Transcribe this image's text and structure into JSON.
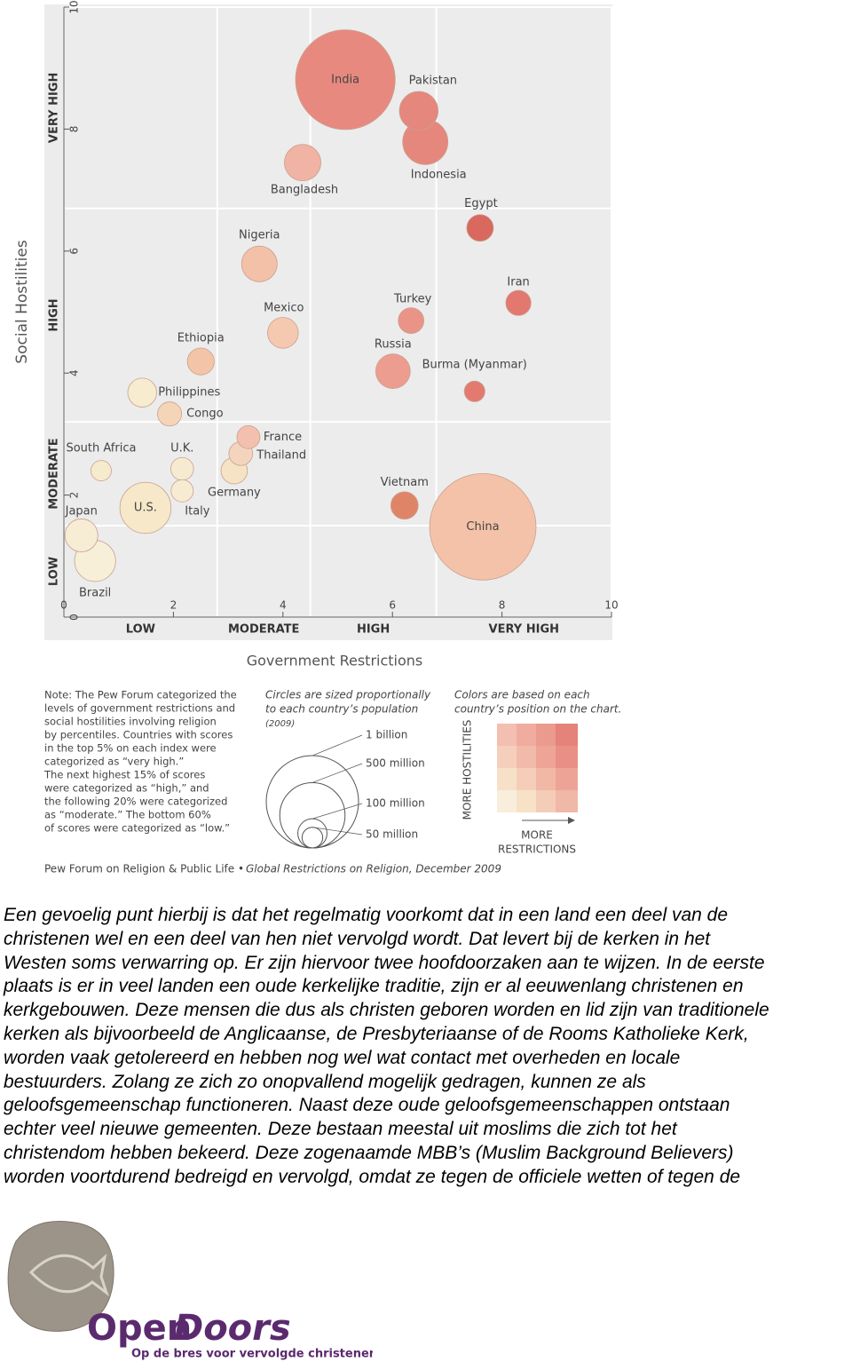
{
  "chart_data": {
    "type": "bubble",
    "x_label": "Government Restrictions",
    "y_label": "Social Hostilities",
    "xlim": [
      0,
      10
    ],
    "ylim": [
      0,
      10
    ],
    "xticks": [
      0,
      2,
      4,
      6,
      8,
      10
    ],
    "yticks": [
      0,
      2,
      4,
      6,
      8,
      10
    ],
    "x_bands": [
      "LOW",
      "MODERATE",
      "HIGH",
      "VERY HIGH"
    ],
    "x_band_edges": [
      0,
      2.8,
      4.5,
      6.8,
      10
    ],
    "y_bands": [
      "LOW",
      "MODERATE",
      "HIGH",
      "VERY HIGH"
    ],
    "y_band_edges": [
      0,
      1.5,
      3.2,
      6.7,
      10
    ],
    "names": [
      "India",
      "Pakistan",
      "Indonesia",
      "Bangladesh",
      "Egypt",
      "Nigeria",
      "Iran",
      "Turkey",
      "Mexico",
      "Russia",
      "Ethiopia",
      "Burma (Myanmar)",
      "Philippines",
      "Congo",
      "France",
      "Thailand",
      "U.K.",
      "South Africa",
      "Germany",
      "Italy",
      "U.S.",
      "Vietnam",
      "China",
      "Japan",
      "Brazil"
    ],
    "x": [
      5.14,
      6.48,
      6.6,
      4.36,
      7.6,
      3.57,
      8.3,
      6.34,
      4.0,
      6.01,
      2.5,
      7.5,
      1.43,
      1.93,
      3.37,
      3.23,
      2.16,
      0.68,
      3.11,
      2.16,
      1.49,
      6.22,
      7.65,
      0.32,
      0.57
    ],
    "y": [
      8.81,
      8.3,
      7.79,
      7.45,
      6.38,
      5.79,
      5.15,
      4.86,
      4.66,
      4.03,
      4.19,
      3.7,
      3.68,
      3.33,
      2.95,
      2.68,
      2.43,
      2.4,
      2.4,
      2.07,
      1.79,
      1.83,
      1.48,
      1.34,
      0.92
    ],
    "sizes": [
      1166,
      176,
      240,
      156,
      83,
      149,
      74,
      77,
      111,
      140,
      85,
      50,
      98,
      68,
      62,
      66,
      61,
      49,
      82,
      58,
      307,
      88,
      1331,
      127,
      198
    ],
    "colors": [
      "#e8897f",
      "#e5877d",
      "#e5877d",
      "#f0b3a4",
      "#d9685f",
      "#f3c0a8",
      "#e27870",
      "#ea9488",
      "#f5c8b0",
      "#ed9c90",
      "#f4c4a8",
      "#e27a70",
      "#f7ecd0",
      "#f5d5b8",
      "#f3c0ad",
      "#f5d4bd",
      "#f6ebd0",
      "#f6ebcc",
      "#f6e2c4",
      "#f7ecd1",
      "#f6e8c8",
      "#e08468",
      "#f4c2a8",
      "#f7edd5",
      "#f7efd8"
    ],
    "size_legend_title": [
      "Circles are sized proportionally",
      "to each country’s population",
      "(2009)"
    ],
    "size_legend": [
      {
        "value": 1000,
        "label": "1 billion"
      },
      {
        "value": 500,
        "label": "500 million"
      },
      {
        "value": 100,
        "label": "100 million"
      },
      {
        "value": 50,
        "label": "50 million"
      }
    ],
    "color_legend_title": [
      "Colors are based on each",
      "country’s position on the chart."
    ],
    "color_legend_y": "MORE HOSTILITIES",
    "color_legend_x": [
      "MORE",
      "RESTRICTIONS"
    ],
    "note": [
      "Note: The Pew Forum categorized the",
      "levels of government restrictions and",
      "social hostilities involving religion",
      "by percentiles. Countries with scores",
      "in the top 5% on each index were",
      "categorized as “very high.”",
      "The next highest 15% of scores",
      "were categorized as “high,” and",
      "the following 20% were categorized",
      "as “moderate.” The bottom 60%",
      "of scores were categorized as “low.”"
    ],
    "source": [
      "Pew Forum on Religion & Public Life •",
      "Global Restrictions on Religion, December 2009"
    ]
  },
  "paragraph": [
    "Een gevoelig punt hierbij is dat het regelmatig voorkomt dat in een land een deel van de",
    "christenen wel en een deel van hen niet vervolgd wordt. Dat levert bij de kerken in het",
    "Westen soms verwarring op. Er zijn hiervoor twee hoofdoorzaken aan te wijzen. In de eerste",
    "plaats is er in veel landen een oude kerkelijke traditie, zijn er al eeuwenlang christenen en",
    "kerkgebouwen. Deze mensen die dus als christen geboren worden en lid zijn van traditionele",
    "kerken als bijvoorbeeld de Anglicaanse, de Presbyteriaanse of de Rooms Katholieke Kerk,",
    "worden vaak getolereerd en hebben nog wel wat contact met overheden en locale",
    "bestuurders. Zolang ze zich zo onopvallend mogelijk gedragen, kunnen ze als",
    "geloofsgemeenschap functioneren. Naast deze oude geloofsgemeenschappen ontstaan",
    "echter veel nieuwe gemeenten. Deze bestaan meestal uit moslims die zich tot het",
    "christendom hebben bekeerd. Deze zogenaamde MBB’s (Muslim Background Believers)",
    "worden voortdurend bedreigd en vervolgd, omdat ze tegen de officiele wetten of tegen de"
  ],
  "logo": {
    "open": "Open",
    "doors": "Doors",
    "tagline": "Op de bres voor vervolgde christenen"
  }
}
